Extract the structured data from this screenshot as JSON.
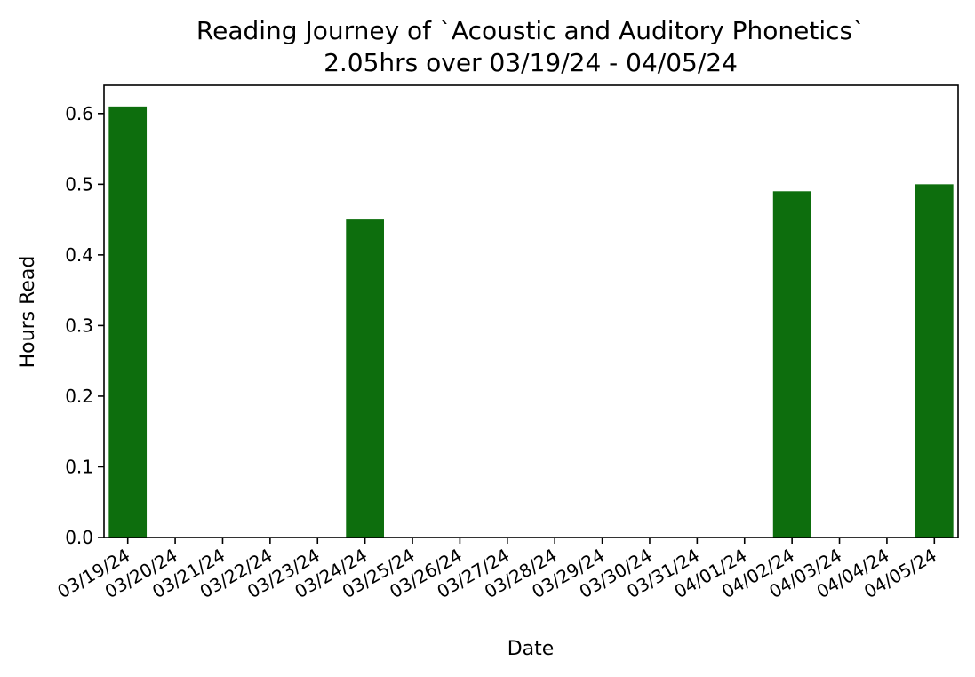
{
  "chart_data": {
    "type": "bar",
    "title": "Reading Journey of `Acoustic and Auditory Phonetics`",
    "subtitle": "2.05hrs over 03/19/24 - 04/05/24",
    "xlabel": "Date",
    "ylabel": "Hours Read",
    "categories": [
      "03/19/24",
      "03/20/24",
      "03/21/24",
      "03/22/24",
      "03/23/24",
      "03/24/24",
      "03/25/24",
      "03/26/24",
      "03/27/24",
      "03/28/24",
      "03/29/24",
      "03/30/24",
      "03/31/24",
      "04/01/24",
      "04/02/24",
      "04/03/24",
      "04/04/24",
      "04/05/24"
    ],
    "values": [
      0.61,
      0,
      0,
      0,
      0,
      0.45,
      0,
      0,
      0,
      0,
      0,
      0,
      0,
      0,
      0.49,
      0,
      0,
      0.5
    ],
    "ylim": [
      0,
      0.64
    ],
    "yticks": [
      "0.0",
      "0.1",
      "0.2",
      "0.3",
      "0.4",
      "0.5",
      "0.6"
    ],
    "bar_color": "#0d6e0d",
    "grid": false
  }
}
